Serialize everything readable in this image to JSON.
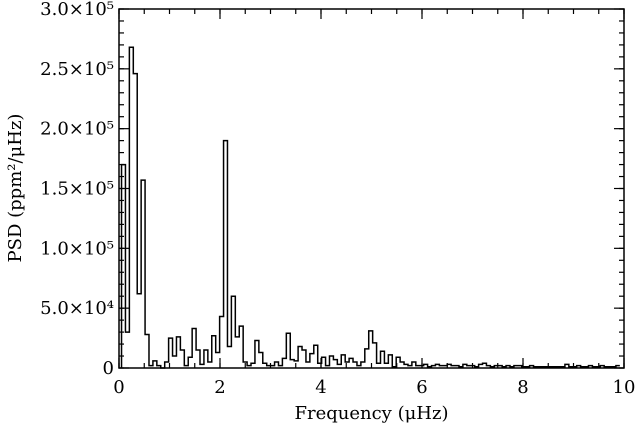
{
  "chart_data": {
    "type": "bar",
    "style": "histogram-step",
    "xlabel": "Frequency (μHz)",
    "ylabel": "PSD (ppm²/μHz)",
    "xlim": [
      0,
      10
    ],
    "ylim": [
      0,
      300000
    ],
    "grid": false,
    "x_tick_labels": [
      "0",
      "2",
      "4",
      "6",
      "8",
      "10"
    ],
    "y_tick_labels": [
      "0",
      "5.0×10⁴",
      "1.0×10⁵",
      "1.5×10⁵",
      "2.0×10⁵",
      "2.5×10⁵",
      "3.0×10⁵"
    ],
    "bin_width": 0.0777,
    "bin_start": 0.05,
    "values": [
      170000,
      30000,
      268000,
      246000,
      62000,
      157000,
      28000,
      2000,
      6000,
      2000,
      0,
      5000,
      25000,
      10000,
      26000,
      15000,
      2000,
      9000,
      33000,
      15000,
      3000,
      15000,
      5000,
      27000,
      13000,
      43000,
      190000,
      18000,
      60000,
      26000,
      35000,
      5000,
      2000,
      4000,
      23000,
      13000,
      4000,
      2000,
      2000,
      5000,
      2000,
      8000,
      29000,
      7000,
      6000,
      18000,
      15000,
      5000,
      12000,
      19000,
      4000,
      9000,
      2000,
      10000,
      7000,
      3000,
      11000,
      5000,
      8000,
      5000,
      2000,
      5000,
      16000,
      31000,
      21000,
      4000,
      14000,
      4000,
      11000,
      1000,
      9000,
      5000,
      3000,
      2000,
      5000,
      2000,
      2000,
      3000,
      1000,
      2000,
      3000,
      2000,
      2000,
      3000,
      2000,
      2000,
      1000,
      3000,
      2000,
      2000,
      1000,
      3000,
      4000,
      2000,
      1000,
      2000,
      2000,
      1000,
      2000,
      1000,
      2000,
      2000,
      1000,
      1000,
      2000,
      1000,
      1000,
      1000,
      1000,
      1000,
      1000,
      1000,
      1000,
      3000,
      1000,
      1000,
      2000,
      1000,
      1000,
      2000,
      1000,
      1000,
      2000,
      1000,
      1000,
      1000,
      2000
    ]
  }
}
